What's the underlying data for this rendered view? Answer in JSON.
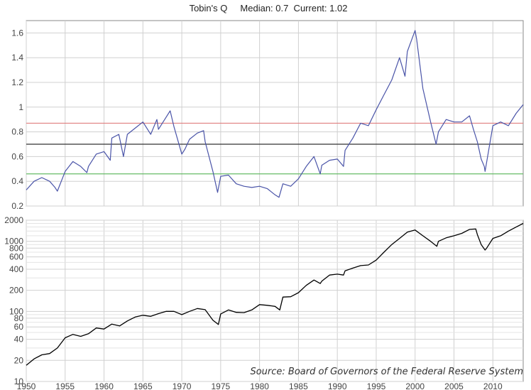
{
  "title": "Tobin's Q     Median: 0.7  Current: 1.02",
  "source": "Source: Board of Governors of the Federal Reserve System",
  "colors": {
    "q_line": "#4a54a8",
    "upper_band": "#e08080",
    "median_line": "#333333",
    "lower_band": "#66bb66",
    "sp_line": "#000000",
    "grid": "#d0d0d0"
  },
  "chart_data": [
    {
      "type": "line",
      "name": "tobins-q",
      "xlim": [
        1950,
        2013.9
      ],
      "ylim": [
        0.2,
        1.7
      ],
      "yticks": [
        0.2,
        0.4,
        0.6,
        0.8,
        1,
        1.2,
        1.4,
        1.6
      ],
      "ytick_labels": [
        "0.2",
        "0.4",
        "0.6",
        "0.8",
        "1",
        "1.2",
        "1.4",
        "1.6"
      ],
      "hlines": [
        {
          "kind": "upper-band",
          "value": 0.87
        },
        {
          "kind": "median",
          "value": 0.7
        },
        {
          "kind": "lower-band",
          "value": 0.46
        }
      ],
      "x": [
        1950,
        1951,
        1952,
        1953,
        1953.7,
        1954,
        1955,
        1956,
        1957,
        1957.8,
        1958,
        1959,
        1960,
        1960.8,
        1961,
        1961.9,
        1962.5,
        1963,
        1964,
        1965,
        1966,
        1966.8,
        1967,
        1968,
        1968.5,
        1969,
        1970,
        1970.4,
        1971,
        1972,
        1972.8,
        1973,
        1974,
        1974.6,
        1975,
        1976,
        1977,
        1978,
        1979,
        1980,
        1981,
        1982,
        1982.5,
        1983,
        1984,
        1985,
        1986,
        1987,
        1987.8,
        1988,
        1989,
        1990,
        1990.8,
        1991,
        1992,
        1993,
        1994,
        1995,
        1996,
        1997,
        1998,
        1998.7,
        1999,
        2000,
        2000.2,
        2001,
        2002,
        2002.7,
        2003,
        2004,
        2005,
        2006,
        2007,
        2007.5,
        2008,
        2008.5,
        2008.9,
        2009,
        2010,
        2011,
        2012,
        2013,
        2013.9
      ],
      "y": [
        0.33,
        0.4,
        0.43,
        0.4,
        0.35,
        0.32,
        0.48,
        0.56,
        0.52,
        0.47,
        0.52,
        0.62,
        0.64,
        0.57,
        0.75,
        0.78,
        0.6,
        0.78,
        0.83,
        0.88,
        0.78,
        0.9,
        0.82,
        0.92,
        0.97,
        0.84,
        0.62,
        0.66,
        0.74,
        0.79,
        0.81,
        0.72,
        0.48,
        0.31,
        0.44,
        0.45,
        0.38,
        0.36,
        0.35,
        0.36,
        0.34,
        0.29,
        0.27,
        0.38,
        0.36,
        0.42,
        0.52,
        0.6,
        0.46,
        0.53,
        0.57,
        0.58,
        0.52,
        0.65,
        0.75,
        0.87,
        0.85,
        0.98,
        1.1,
        1.22,
        1.4,
        1.25,
        1.45,
        1.62,
        1.55,
        1.15,
        0.88,
        0.7,
        0.8,
        0.9,
        0.88,
        0.88,
        0.93,
        0.82,
        0.72,
        0.58,
        0.52,
        0.48,
        0.85,
        0.88,
        0.85,
        0.95,
        1.02
      ]
    },
    {
      "type": "line",
      "name": "sp-composite",
      "yscale": "log",
      "xlim": [
        1950,
        2013.9
      ],
      "ylim": [
        10,
        2000
      ],
      "yticks": [
        10,
        20,
        40,
        60,
        80,
        100,
        200,
        400,
        600,
        800,
        1000,
        2000
      ],
      "ytick_labels": [
        "10",
        "20",
        "40",
        "60",
        "80",
        "100",
        "200",
        "400",
        "600",
        "800",
        "1000",
        "2000"
      ],
      "minor_yticks": [
        30,
        50,
        70,
        90,
        300,
        500,
        700,
        900,
        1200,
        1400,
        1600,
        1800
      ],
      "xticks": [
        1950,
        1955,
        1960,
        1965,
        1970,
        1975,
        1980,
        1985,
        1990,
        1995,
        2000,
        2005,
        2010
      ],
      "x": [
        1950,
        1951,
        1952,
        1953,
        1954,
        1955,
        1956,
        1957,
        1958,
        1959,
        1960,
        1961,
        1962,
        1963,
        1964,
        1965,
        1966,
        1967,
        1968,
        1969,
        1970,
        1971,
        1972,
        1973,
        1974,
        1974.7,
        1975,
        1976,
        1977,
        1978,
        1979,
        1980,
        1981,
        1982,
        1982.6,
        1983,
        1984,
        1985,
        1986,
        1987,
        1987.8,
        1988,
        1989,
        1990,
        1990.8,
        1991,
        1992,
        1993,
        1994,
        1995,
        1996,
        1997,
        1998,
        1999,
        2000,
        2001,
        2002,
        2002.8,
        2003,
        2004,
        2005,
        2006,
        2007,
        2007.8,
        2008,
        2008.5,
        2009,
        2009.2,
        2010,
        2011,
        2012,
        2013,
        2013.9
      ],
      "y": [
        17,
        21,
        24,
        25,
        30,
        42,
        47,
        44,
        48,
        58,
        56,
        66,
        62,
        73,
        83,
        88,
        85,
        93,
        100,
        100,
        90,
        100,
        110,
        106,
        75,
        65,
        92,
        105,
        97,
        96,
        105,
        125,
        122,
        118,
        105,
        160,
        162,
        185,
        235,
        280,
        250,
        270,
        330,
        340,
        330,
        380,
        415,
        450,
        460,
        540,
        700,
        900,
        1100,
        1350,
        1450,
        1200,
        1000,
        850,
        1000,
        1120,
        1200,
        1300,
        1480,
        1500,
        1250,
        900,
        750,
        800,
        1100,
        1200,
        1400,
        1600,
        1800
      ]
    }
  ]
}
